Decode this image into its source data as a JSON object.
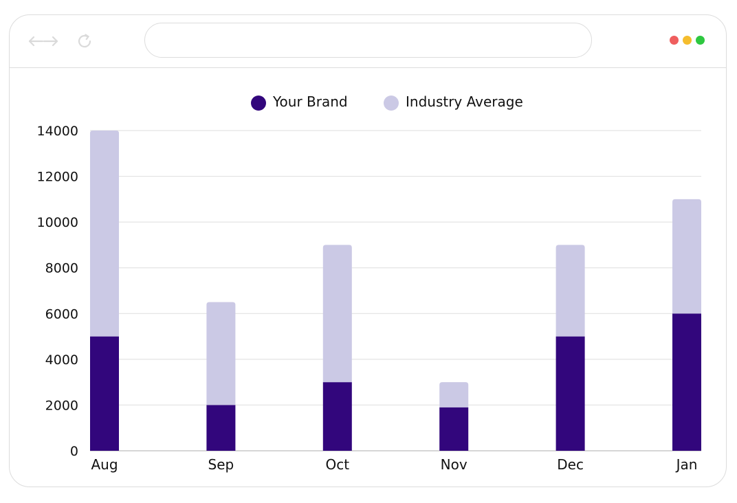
{
  "browser": {
    "icons": {
      "back_forward": "back-forward-arrows-icon",
      "reload": "reload-icon"
    },
    "address_bar": {
      "value": ""
    },
    "window_controls": {
      "close_color": "#ef5e5e",
      "minimize_color": "#f5bd2e",
      "maximize_color": "#2ec840"
    }
  },
  "chart_data": {
    "type": "bar",
    "stacked": true,
    "title": "",
    "xlabel": "",
    "ylabel": "",
    "categories": [
      "Aug",
      "Sep",
      "Oct",
      "Nov",
      "Dec",
      "Jan"
    ],
    "series": [
      {
        "name": "Your Brand",
        "color": "#32067c",
        "values": [
          5000,
          2000,
          3000,
          1900,
          5000,
          6000
        ]
      },
      {
        "name": "Industry Average",
        "color": "#cbc9e5",
        "values": [
          9000,
          4500,
          6000,
          1100,
          4000,
          5000
        ]
      }
    ],
    "ylim": [
      0,
      14000
    ],
    "yticks": [
      0,
      2000,
      4000,
      6000,
      8000,
      10000,
      12000,
      14000
    ],
    "grid": true,
    "legend": "top-center"
  }
}
